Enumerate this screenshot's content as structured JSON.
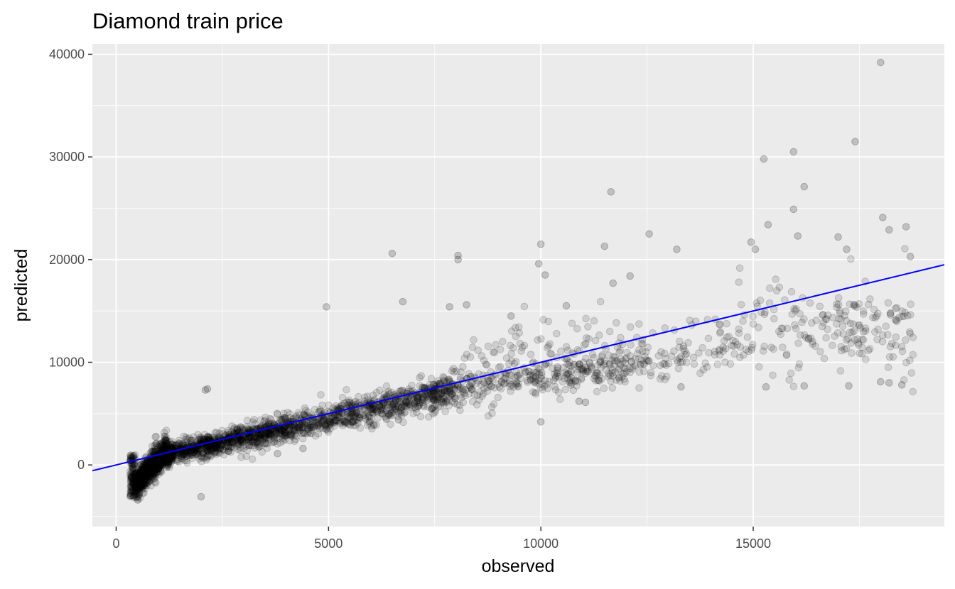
{
  "chart_data": {
    "type": "scatter",
    "title": "Diamond train price",
    "xlabel": "observed",
    "ylabel": "predicted",
    "xlim": [
      -560,
      19500
    ],
    "ylim": [
      -6000,
      41000
    ],
    "x_ticks": [
      0,
      5000,
      10000,
      15000
    ],
    "x_tick_labels": [
      "0",
      "5000",
      "10000",
      "15000"
    ],
    "y_ticks": [
      0,
      10000,
      20000,
      30000,
      40000
    ],
    "y_tick_labels": [
      "0",
      "10000",
      "20000",
      "30000",
      "40000"
    ],
    "grid": true,
    "reference_line": {
      "slope": 1,
      "intercept": 0,
      "color": "#0000ff"
    },
    "point_color": "#000000",
    "point_alpha": 0.12,
    "outliers": [
      {
        "x": 18000,
        "y": 39200
      },
      {
        "x": 17400,
        "y": 31500
      },
      {
        "x": 15950,
        "y": 30500
      },
      {
        "x": 15250,
        "y": 29800
      },
      {
        "x": 16200,
        "y": 27100
      },
      {
        "x": 11650,
        "y": 26600
      },
      {
        "x": 15950,
        "y": 24900
      },
      {
        "x": 18050,
        "y": 24100
      },
      {
        "x": 15350,
        "y": 23400
      },
      {
        "x": 18200,
        "y": 22900
      },
      {
        "x": 18600,
        "y": 23200
      },
      {
        "x": 12550,
        "y": 22500
      },
      {
        "x": 16050,
        "y": 22300
      },
      {
        "x": 17000,
        "y": 22200
      },
      {
        "x": 14950,
        "y": 21700
      },
      {
        "x": 10000,
        "y": 21500
      },
      {
        "x": 11500,
        "y": 21300
      },
      {
        "x": 13200,
        "y": 21000
      },
      {
        "x": 15050,
        "y": 21000
      },
      {
        "x": 17200,
        "y": 21000
      },
      {
        "x": 6500,
        "y": 20600
      },
      {
        "x": 8050,
        "y": 20400
      },
      {
        "x": 8050,
        "y": 20000
      },
      {
        "x": 18700,
        "y": 20300
      },
      {
        "x": 9950,
        "y": 19600
      },
      {
        "x": 10100,
        "y": 18500
      },
      {
        "x": 12100,
        "y": 18400
      },
      {
        "x": 11700,
        "y": 17700
      },
      {
        "x": 4950,
        "y": 15400
      },
      {
        "x": 7850,
        "y": 15400
      },
      {
        "x": 6750,
        "y": 15900
      },
      {
        "x": 8250,
        "y": 15600
      },
      {
        "x": 9300,
        "y": 14500
      },
      {
        "x": 10600,
        "y": 15500
      },
      {
        "x": 2150,
        "y": 7400
      },
      {
        "x": 2100,
        "y": 7300
      },
      {
        "x": 10000,
        "y": 4200
      },
      {
        "x": 2000,
        "y": -3100
      },
      {
        "x": 6650,
        "y": 4400
      },
      {
        "x": 18000,
        "y": 8100
      },
      {
        "x": 18200,
        "y": 8000
      },
      {
        "x": 18500,
        "y": 7800
      },
      {
        "x": 16200,
        "y": 7700
      },
      {
        "x": 15300,
        "y": 7600
      },
      {
        "x": 17250,
        "y": 7700
      },
      {
        "x": 13300,
        "y": 7600
      },
      {
        "x": 11050,
        "y": 6100
      },
      {
        "x": 10900,
        "y": 6200
      },
      {
        "x": 4400,
        "y": 1600
      },
      {
        "x": 3800,
        "y": 1100
      }
    ]
  }
}
